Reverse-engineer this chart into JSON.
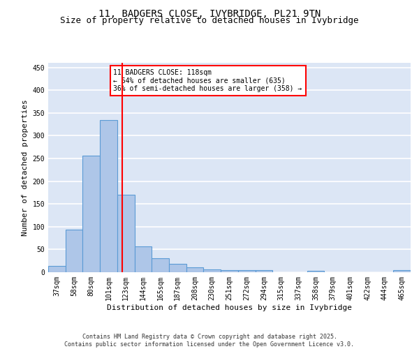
{
  "title_line1": "11, BADGERS CLOSE, IVYBRIDGE, PL21 9TN",
  "title_line2": "Size of property relative to detached houses in Ivybridge",
  "xlabel": "Distribution of detached houses by size in Ivybridge",
  "ylabel": "Number of detached properties",
  "bar_labels": [
    "37sqm",
    "58sqm",
    "80sqm",
    "101sqm",
    "123sqm",
    "144sqm",
    "165sqm",
    "187sqm",
    "208sqm",
    "230sqm",
    "251sqm",
    "272sqm",
    "294sqm",
    "315sqm",
    "337sqm",
    "358sqm",
    "379sqm",
    "401sqm",
    "422sqm",
    "444sqm",
    "465sqm"
  ],
  "bar_values": [
    14,
    94,
    256,
    335,
    170,
    57,
    31,
    18,
    10,
    6,
    5,
    5,
    5,
    0,
    0,
    3,
    0,
    0,
    0,
    0,
    4
  ],
  "bar_color": "#aec6e8",
  "bar_edge_color": "#5b9bd5",
  "background_color": "#dce6f5",
  "grid_color": "#ffffff",
  "red_line_x": 3.77,
  "annotation_box_text": "11 BADGERS CLOSE: 118sqm\n← 64% of detached houses are smaller (635)\n36% of semi-detached houses are larger (358) →",
  "ylim": [
    0,
    460
  ],
  "yticks": [
    0,
    50,
    100,
    150,
    200,
    250,
    300,
    350,
    400,
    450
  ],
  "footer_line1": "Contains HM Land Registry data © Crown copyright and database right 2025.",
  "footer_line2": "Contains public sector information licensed under the Open Government Licence v3.0.",
  "title_fontsize": 10,
  "subtitle_fontsize": 9,
  "tick_fontsize": 7,
  "ylabel_fontsize": 8,
  "xlabel_fontsize": 8,
  "annot_fontsize": 7,
  "footer_fontsize": 6
}
